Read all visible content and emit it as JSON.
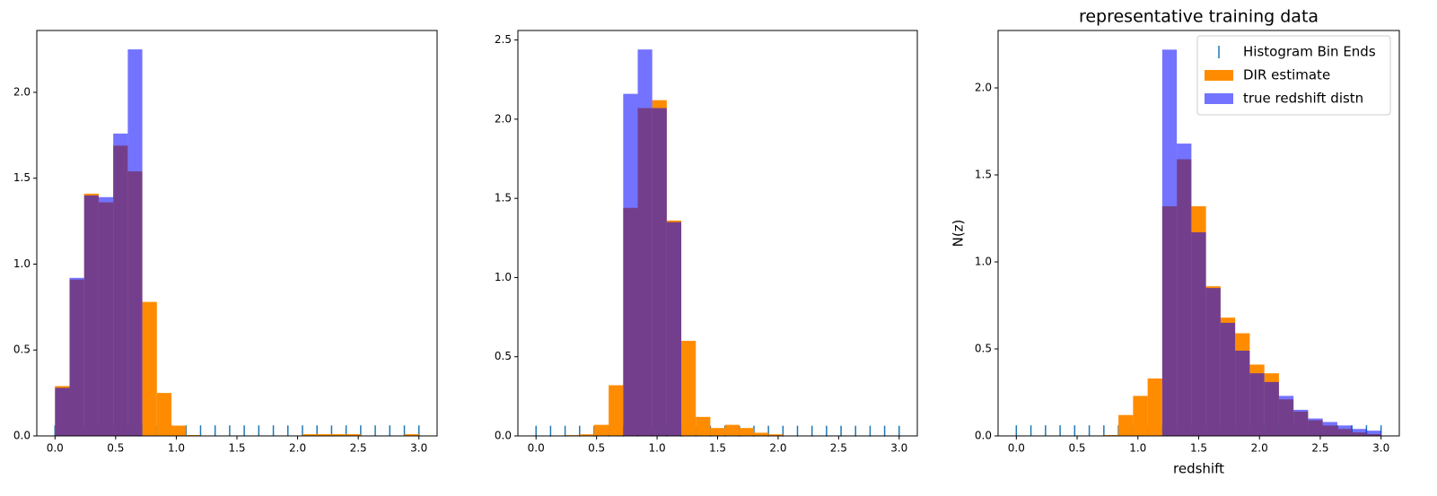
{
  "chart_data": [
    {
      "type": "histogram",
      "bins": [
        0,
        0.12,
        0.24,
        0.36,
        0.48,
        0.6,
        0.72,
        0.84,
        0.96,
        1.08,
        1.2,
        1.32,
        1.44,
        1.56,
        1.68,
        1.8,
        1.92,
        2.04,
        2.16,
        2.28,
        2.4,
        2.52,
        2.64,
        2.76,
        2.88,
        3
      ],
      "series": [
        {
          "type": "bin_ends",
          "color": "#1f77b4",
          "value": 0.03
        },
        {
          "color": "#ff8c00",
          "values": [
            0.29,
            0.91,
            1.41,
            1.36,
            1.69,
            1.54,
            0.78,
            0.25,
            0.06,
            0.005,
            0,
            0,
            0,
            0,
            0,
            0,
            0,
            0.01,
            0.01,
            0.01,
            0.01,
            0,
            0,
            0,
            0.01
          ]
        },
        {
          "color": "#0000ff",
          "alpha": 0.55,
          "values": [
            0.28,
            0.92,
            1.4,
            1.39,
            1.76,
            2.25,
            0,
            0,
            0,
            0,
            0,
            0,
            0,
            0,
            0,
            0,
            0,
            0,
            0,
            0,
            0,
            0,
            0,
            0,
            0
          ]
        }
      ],
      "xlim": [
        -0.15,
        3.15
      ],
      "ylim": [
        0,
        2.36
      ],
      "xticks": [
        {
          "value": 0,
          "label": "0.0"
        },
        {
          "value": 0.5,
          "label": "0.5"
        },
        {
          "value": 1,
          "label": "1.0"
        },
        {
          "value": 1.5,
          "label": "1.5"
        },
        {
          "value": 2,
          "label": "2.0"
        },
        {
          "value": 2.5,
          "label": "2.5"
        },
        {
          "value": 3,
          "label": "3.0"
        }
      ],
      "yticks": [
        {
          "value": 0,
          "label": "0.0"
        },
        {
          "value": 0.5,
          "label": "0.5"
        },
        {
          "value": 1,
          "label": "1.0"
        },
        {
          "value": 1.5,
          "label": "1.5"
        },
        {
          "value": 2,
          "label": "2.0"
        }
      ]
    },
    {
      "type": "histogram",
      "bins": [
        0,
        0.12,
        0.24,
        0.36,
        0.48,
        0.6,
        0.72,
        0.84,
        0.96,
        1.08,
        1.2,
        1.32,
        1.44,
        1.56,
        1.68,
        1.8,
        1.92,
        2.04,
        2.16,
        2.28,
        2.4,
        2.52,
        2.64,
        2.76,
        2.88,
        3
      ],
      "series": [
        {
          "type": "bin_ends",
          "color": "#1f77b4",
          "value": 0.03
        },
        {
          "color": "#ff8c00",
          "values": [
            0,
            0,
            0.005,
            0.01,
            0.07,
            0.32,
            1.44,
            2.07,
            2.12,
            1.36,
            0.6,
            0.12,
            0.05,
            0.07,
            0.05,
            0.02,
            0.01,
            0,
            0,
            0,
            0,
            0,
            0,
            0,
            0
          ]
        },
        {
          "color": "#0000ff",
          "alpha": 0.55,
          "values": [
            0,
            0,
            0,
            0,
            0,
            0,
            2.16,
            2.44,
            2.07,
            1.35,
            0,
            0,
            0,
            0,
            0,
            0,
            0,
            0,
            0,
            0,
            0,
            0,
            0,
            0,
            0
          ]
        }
      ],
      "xlim": [
        -0.15,
        3.15
      ],
      "ylim": [
        0,
        2.56
      ],
      "xticks": [
        {
          "value": 0,
          "label": "0.0"
        },
        {
          "value": 0.5,
          "label": "0.5"
        },
        {
          "value": 1,
          "label": "1.0"
        },
        {
          "value": 1.5,
          "label": "1.5"
        },
        {
          "value": 2,
          "label": "2.0"
        },
        {
          "value": 2.5,
          "label": "2.5"
        },
        {
          "value": 3,
          "label": "3.0"
        }
      ],
      "yticks": [
        {
          "value": 0,
          "label": "0.0"
        },
        {
          "value": 0.5,
          "label": "0.5"
        },
        {
          "value": 1,
          "label": "1.0"
        },
        {
          "value": 1.5,
          "label": "1.5"
        },
        {
          "value": 2,
          "label": "2.0"
        },
        {
          "value": 2.5,
          "label": "2.5"
        }
      ]
    },
    {
      "type": "histogram",
      "title": "representative training data",
      "xlabel": "redshift",
      "ylabel": "N(z)",
      "legend": "upper right",
      "bins": [
        0,
        0.12,
        0.24,
        0.36,
        0.48,
        0.6,
        0.72,
        0.84,
        0.96,
        1.08,
        1.2,
        1.32,
        1.44,
        1.56,
        1.68,
        1.8,
        1.92,
        2.04,
        2.16,
        2.28,
        2.4,
        2.52,
        2.64,
        2.76,
        2.88,
        3
      ],
      "series": [
        {
          "name": "Histogram Bin Ends",
          "type": "bin_ends",
          "color": "#1f77b4",
          "value": 0.03
        },
        {
          "name": "DIR estimate",
          "color": "#ff8c00",
          "values": [
            0,
            0,
            0,
            0,
            0,
            0,
            0.005,
            0.12,
            0.23,
            0.33,
            1.32,
            1.59,
            1.32,
            0.86,
            0.68,
            0.59,
            0.41,
            0.36,
            0.21,
            0.14,
            0.09,
            0.06,
            0.04,
            0.02,
            0.01
          ]
        },
        {
          "name": "true redshift distn",
          "color": "#0000ff",
          "alpha": 0.55,
          "values": [
            0,
            0,
            0,
            0,
            0,
            0,
            0,
            0,
            0,
            0,
            2.22,
            1.68,
            1.17,
            0.85,
            0.65,
            0.49,
            0.36,
            0.31,
            0.23,
            0.15,
            0.1,
            0.08,
            0.06,
            0.04,
            0.03
          ]
        }
      ],
      "xlim": [
        -0.15,
        3.15
      ],
      "ylim": [
        0,
        2.33
      ],
      "xticks": [
        {
          "value": 0,
          "label": "0.0"
        },
        {
          "value": 0.5,
          "label": "0.5"
        },
        {
          "value": 1,
          "label": "1.0"
        },
        {
          "value": 1.5,
          "label": "1.5"
        },
        {
          "value": 2,
          "label": "2.0"
        },
        {
          "value": 2.5,
          "label": "2.5"
        },
        {
          "value": 3,
          "label": "3.0"
        }
      ],
      "yticks": [
        {
          "value": 0,
          "label": "0.0"
        },
        {
          "value": 0.5,
          "label": "0.5"
        },
        {
          "value": 1,
          "label": "1.0"
        },
        {
          "value": 1.5,
          "label": "1.5"
        },
        {
          "value": 2,
          "label": "2.0"
        }
      ]
    }
  ]
}
